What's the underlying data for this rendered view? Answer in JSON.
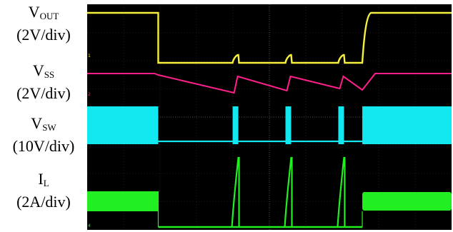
{
  "chart_data": {
    "type": "line",
    "title": "",
    "grid": true,
    "time_divisions": 10,
    "vertical_divisions": 8,
    "background": "#000000",
    "channels": [
      {
        "id": "vout",
        "symbol": "V",
        "subscript": "OUT",
        "scale": "(2V/div)",
        "color": "#f5f03c",
        "marker": "1",
        "pattern": "hiccup: high until t=1.95 div, low to t=7.55 div with restart bumps at t=4.05, 5.5, 6.95 div, then returns high"
      },
      {
        "id": "vss",
        "symbol": "V",
        "subscript": "SS",
        "scale": "(2V/div)",
        "color": "#ff1f8a",
        "marker": "2",
        "pattern": "flat level, then discharge ramps with sawtooth resets at each restart, then recharge ramp from t=7.55 div"
      },
      {
        "id": "vsw",
        "symbol": "V",
        "subscript": "SW",
        "scale": "(10V/div)",
        "color": "#12e8f0",
        "marker": "3",
        "pattern": "switching band (high-frequency) before t=1.95 div and after t=7.55 div; short bursts at t=4.05, 5.5, 6.95 div"
      },
      {
        "id": "il",
        "symbol": "I",
        "subscript": "L",
        "scale": "(2A/div)",
        "color": "#22ef22",
        "marker": "4",
        "pattern": "ripple band before t=1.95 div and after t=7.55 div; current spikes at t=4.05, 5.5, 6.95 div; zero otherwise"
      }
    ],
    "event_times_div": [
      1.95,
      4.05,
      5.5,
      6.95,
      7.55
    ]
  }
}
